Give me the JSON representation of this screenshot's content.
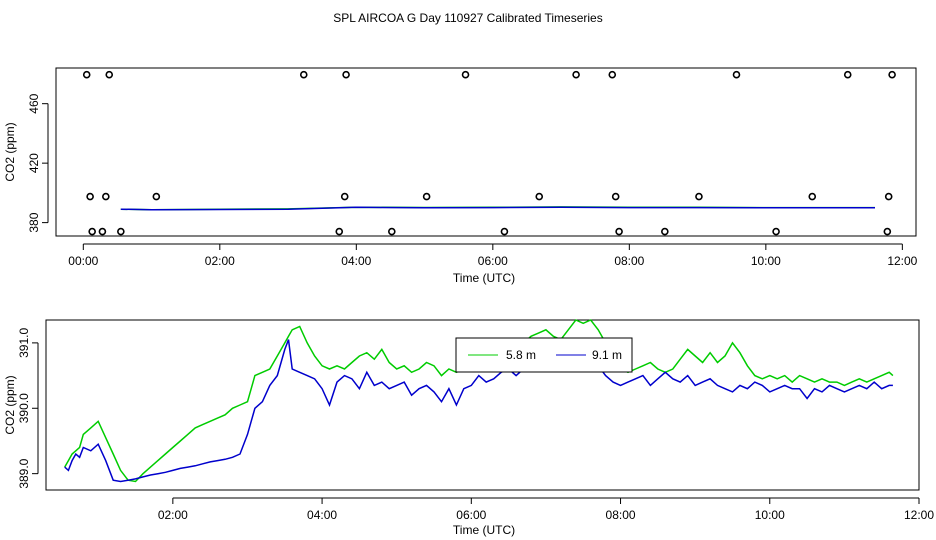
{
  "title": "SPL AIRCOA G  Day 110927  Calibrated Timeseries",
  "chart_data": [
    {
      "type": "scatter",
      "xlabel": "Time (UTC)",
      "ylabel": "CO2 (ppm)",
      "xlim": [
        -0.4,
        12.2
      ],
      "ylim": [
        371,
        484
      ],
      "xticks": [
        0,
        2,
        4,
        6,
        8,
        10,
        12
      ],
      "xtick_labels": [
        "00:00",
        "02:00",
        "04:00",
        "06:00",
        "08:00",
        "10:00",
        "12:00"
      ],
      "yticks": [
        380,
        420,
        460
      ],
      "ytick_labels": [
        "380",
        "420",
        "460"
      ],
      "points": [
        [
          0.05,
          479.5
        ],
        [
          0.38,
          479.5
        ],
        [
          3.23,
          479.5
        ],
        [
          3.85,
          479.5
        ],
        [
          5.6,
          479.5
        ],
        [
          7.22,
          479.5
        ],
        [
          7.75,
          479.5
        ],
        [
          9.57,
          479.5
        ],
        [
          11.2,
          479.5
        ],
        [
          11.85,
          479.5
        ],
        [
          0.1,
          397.5
        ],
        [
          0.33,
          397.5
        ],
        [
          1.07,
          397.5
        ],
        [
          3.83,
          397.5
        ],
        [
          5.03,
          397.5
        ],
        [
          6.68,
          397.5
        ],
        [
          7.8,
          397.5
        ],
        [
          9.02,
          397.5
        ],
        [
          10.68,
          397.5
        ],
        [
          11.8,
          397.5
        ],
        [
          0.13,
          374
        ],
        [
          0.28,
          374
        ],
        [
          0.55,
          374
        ],
        [
          3.75,
          374
        ],
        [
          4.52,
          374
        ],
        [
          6.17,
          374
        ],
        [
          7.85,
          374
        ],
        [
          8.52,
          374
        ],
        [
          10.15,
          374
        ],
        [
          11.78,
          374
        ]
      ],
      "series": [
        {
          "color": "#00cc00",
          "x": [
            0.55,
            1.0,
            2.0,
            3.0,
            4.0,
            5.0,
            6.0,
            7.0,
            8.0,
            9.0,
            10.0,
            11.0,
            11.6
          ],
          "y": [
            389,
            388.7,
            389,
            389.2,
            390.4,
            390.2,
            390.3,
            390.6,
            390.3,
            390.3,
            390.1,
            390.1,
            390.1
          ]
        },
        {
          "color": "#0000cc",
          "x": [
            0.55,
            1.0,
            2.0,
            3.0,
            4.0,
            5.0,
            6.0,
            7.0,
            8.0,
            9.0,
            10.0,
            11.0,
            11.6
          ],
          "y": [
            389,
            388.7,
            388.8,
            389.0,
            390.3,
            390.0,
            390.1,
            390.4,
            390.1,
            390.1,
            390.0,
            390.0,
            390.0
          ]
        }
      ]
    },
    {
      "type": "line",
      "xlabel": "Time (UTC)",
      "ylabel": "CO2 (ppm)",
      "xlim": [
        0.3,
        12.0
      ],
      "ylim": [
        388.75,
        391.35
      ],
      "xticks": [
        2,
        4,
        6,
        8,
        10,
        12
      ],
      "xtick_labels": [
        "02:00",
        "04:00",
        "06:00",
        "08:00",
        "10:00",
        "12:00"
      ],
      "yticks": [
        389.0,
        390.0,
        391.0
      ],
      "ytick_labels": [
        "389.0",
        "390.0",
        "391.0"
      ],
      "legend": {
        "position": "top-center",
        "entries": [
          "5.8 m",
          "9.1 m"
        ]
      },
      "series": [
        {
          "name": "5.8 m",
          "color": "#00cc00",
          "x": [
            0.55,
            0.6,
            0.65,
            0.7,
            0.75,
            0.8,
            0.9,
            1.0,
            1.1,
            1.2,
            1.3,
            1.4,
            1.5,
            1.6,
            1.7,
            1.8,
            1.9,
            2.0,
            2.1,
            2.2,
            2.3,
            2.4,
            2.5,
            2.6,
            2.7,
            2.8,
            2.9,
            3.0,
            3.05,
            3.1,
            3.2,
            3.3,
            3.4,
            3.5,
            3.55,
            3.6,
            3.7,
            3.8,
            3.9,
            4.0,
            4.1,
            4.2,
            4.3,
            4.4,
            4.5,
            4.6,
            4.7,
            4.8,
            4.9,
            5.0,
            5.1,
            5.2,
            5.3,
            5.4,
            5.5,
            5.6,
            5.7,
            5.8,
            5.9,
            6.0,
            6.1,
            6.2,
            6.3,
            6.4,
            6.5,
            6.6,
            6.7,
            6.8,
            6.9,
            7.0,
            7.1,
            7.2,
            7.3,
            7.4,
            7.5,
            7.6,
            7.7,
            7.8,
            7.9,
            8.0,
            8.1,
            8.2,
            8.3,
            8.4,
            8.5,
            8.6,
            8.7,
            8.8,
            8.9,
            9.0,
            9.1,
            9.2,
            9.3,
            9.4,
            9.5,
            9.6,
            9.7,
            9.8,
            9.9,
            10.0,
            10.1,
            10.2,
            10.3,
            10.4,
            10.5,
            10.6,
            10.7,
            10.8,
            10.9,
            11.0,
            11.1,
            11.2,
            11.3,
            11.4,
            11.5,
            11.6,
            11.65
          ],
          "y": [
            389.1,
            389.2,
            389.3,
            389.35,
            389.4,
            389.6,
            389.7,
            389.8,
            389.55,
            389.3,
            389.05,
            388.9,
            388.88,
            389.0,
            389.1,
            389.2,
            389.3,
            389.4,
            389.5,
            389.6,
            389.7,
            389.75,
            389.8,
            389.85,
            389.9,
            390.0,
            390.05,
            390.1,
            390.3,
            390.5,
            390.55,
            390.6,
            390.8,
            391.0,
            391.1,
            391.2,
            391.25,
            391.0,
            390.8,
            390.65,
            390.6,
            390.65,
            390.6,
            390.7,
            390.8,
            390.85,
            390.75,
            390.9,
            390.7,
            390.6,
            390.65,
            390.55,
            390.6,
            390.7,
            390.65,
            390.5,
            390.6,
            390.55,
            390.6,
            390.7,
            390.75,
            390.7,
            390.8,
            390.75,
            390.7,
            390.9,
            391.0,
            391.1,
            391.15,
            391.2,
            391.1,
            391.05,
            391.2,
            391.35,
            391.3,
            391.35,
            391.2,
            391.0,
            390.8,
            390.6,
            390.55,
            390.6,
            390.65,
            390.7,
            390.6,
            390.55,
            390.6,
            390.75,
            390.9,
            390.8,
            390.7,
            390.85,
            390.7,
            390.8,
            391.0,
            390.85,
            390.65,
            390.5,
            390.45,
            390.5,
            390.45,
            390.5,
            390.4,
            390.5,
            390.45,
            390.4,
            390.45,
            390.4,
            390.4,
            390.35,
            390.4,
            390.45,
            390.4,
            390.45,
            390.5,
            390.55,
            390.5
          ]
        },
        {
          "name": "9.1 m",
          "color": "#0000cc",
          "x": [
            0.55,
            0.6,
            0.65,
            0.7,
            0.75,
            0.8,
            0.9,
            1.0,
            1.1,
            1.2,
            1.3,
            1.4,
            1.5,
            1.6,
            1.7,
            1.8,
            1.9,
            2.0,
            2.1,
            2.2,
            2.3,
            2.4,
            2.5,
            2.6,
            2.7,
            2.8,
            2.9,
            3.0,
            3.05,
            3.1,
            3.2,
            3.3,
            3.4,
            3.5,
            3.55,
            3.6,
            3.7,
            3.8,
            3.9,
            4.0,
            4.1,
            4.2,
            4.3,
            4.4,
            4.5,
            4.6,
            4.7,
            4.8,
            4.9,
            5.0,
            5.1,
            5.2,
            5.3,
            5.4,
            5.5,
            5.6,
            5.7,
            5.8,
            5.9,
            6.0,
            6.1,
            6.2,
            6.3,
            6.4,
            6.5,
            6.6,
            6.7,
            6.8,
            6.9,
            7.0,
            7.1,
            7.2,
            7.3,
            7.4,
            7.5,
            7.6,
            7.7,
            7.8,
            7.9,
            8.0,
            8.1,
            8.2,
            8.3,
            8.4,
            8.5,
            8.6,
            8.7,
            8.8,
            8.9,
            9.0,
            9.1,
            9.2,
            9.3,
            9.4,
            9.5,
            9.6,
            9.7,
            9.8,
            9.9,
            10.0,
            10.1,
            10.2,
            10.3,
            10.4,
            10.5,
            10.6,
            10.7,
            10.8,
            10.9,
            11.0,
            11.1,
            11.2,
            11.3,
            11.4,
            11.5,
            11.6,
            11.65
          ],
          "y": [
            389.1,
            389.05,
            389.2,
            389.3,
            389.25,
            389.4,
            389.35,
            389.45,
            389.2,
            388.9,
            388.88,
            388.9,
            388.92,
            388.95,
            388.98,
            389.0,
            389.02,
            389.05,
            389.08,
            389.1,
            389.12,
            389.15,
            389.18,
            389.2,
            389.22,
            389.25,
            389.3,
            389.6,
            389.8,
            390.0,
            390.1,
            390.35,
            390.5,
            390.9,
            391.05,
            390.6,
            390.55,
            390.5,
            390.45,
            390.3,
            390.05,
            390.4,
            390.5,
            390.45,
            390.3,
            390.55,
            390.35,
            390.4,
            390.3,
            390.35,
            390.4,
            390.2,
            390.3,
            390.35,
            390.25,
            390.1,
            390.3,
            390.05,
            390.3,
            390.35,
            390.5,
            390.4,
            390.45,
            390.55,
            390.6,
            390.5,
            390.6,
            390.7,
            390.6,
            390.65,
            390.7,
            390.75,
            390.8,
            390.9,
            390.85,
            390.75,
            390.65,
            390.5,
            390.4,
            390.35,
            390.4,
            390.45,
            390.5,
            390.35,
            390.45,
            390.55,
            390.45,
            390.4,
            390.5,
            390.35,
            390.4,
            390.45,
            390.35,
            390.3,
            390.25,
            390.35,
            390.3,
            390.4,
            390.35,
            390.25,
            390.3,
            390.35,
            390.3,
            390.3,
            390.15,
            390.3,
            390.25,
            390.35,
            390.3,
            390.25,
            390.3,
            390.35,
            390.3,
            390.4,
            390.3,
            390.35,
            390.35
          ]
        }
      ]
    }
  ]
}
